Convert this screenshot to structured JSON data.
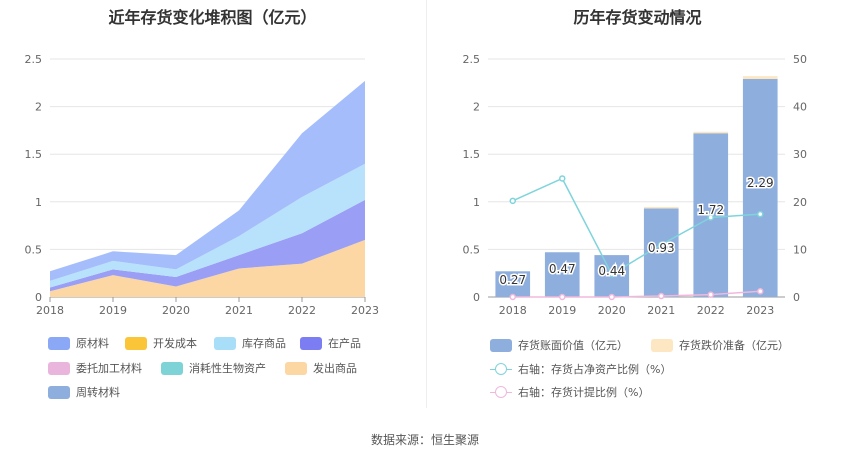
{
  "left_chart": {
    "title": "近年存货变化堆积图（亿元）",
    "legend": [
      {
        "label": "原材料",
        "color": "#8aa8f5"
      },
      {
        "label": "开发成本",
        "color": "#fbc53a"
      },
      {
        "label": "库存商品",
        "color": "#a9def9"
      },
      {
        "label": "在产品",
        "color": "#7c7df2"
      },
      {
        "label": "委托加工材料",
        "color": "#e9b5dd"
      },
      {
        "label": "消耗性生物资产",
        "color": "#7ed3d6"
      },
      {
        "label": "发出商品",
        "color": "#fcd7a3"
      },
      {
        "label": "周转材料",
        "color": "#8eaede"
      }
    ]
  },
  "right_chart": {
    "title": "历年存货变动情况",
    "legend": [
      {
        "label": "存货账面价值（亿元）",
        "color": "#8eaedd",
        "kind": "bar"
      },
      {
        "label": "存货跌价准备（亿元）",
        "color": "#fde6c2",
        "kind": "bar"
      },
      {
        "label": "右轴：存货占净资产比例（%）",
        "color": "#7fd4dc",
        "kind": "line"
      },
      {
        "label": "右轴：存货计提比例（%）",
        "color": "#f0b8dc",
        "kind": "line"
      }
    ]
  },
  "chart_data": [
    {
      "type": "area",
      "stacked": true,
      "title": "近年存货变化堆积图（亿元）",
      "x": [
        "2018",
        "2019",
        "2020",
        "2021",
        "2022",
        "2023"
      ],
      "ylim": [
        0,
        2.5
      ],
      "yticks": [
        "0",
        "0.5",
        "1",
        "1.5",
        "2",
        "2.5"
      ],
      "grid": true,
      "series": [
        {
          "name": "发出商品",
          "color": "#fcd7a3",
          "values": [
            0.06,
            0.23,
            0.11,
            0.3,
            0.35,
            0.6
          ]
        },
        {
          "name": "在产品",
          "color": "#9a9ef5",
          "values": [
            0.04,
            0.06,
            0.1,
            0.14,
            0.32,
            0.42
          ]
        },
        {
          "name": "库存商品",
          "color": "#b8e2fb",
          "values": [
            0.07,
            0.09,
            0.08,
            0.2,
            0.38,
            0.38
          ]
        },
        {
          "name": "原材料",
          "color": "#a5bdfb",
          "values": [
            0.1,
            0.1,
            0.15,
            0.27,
            0.67,
            0.87
          ]
        }
      ]
    },
    {
      "type": "bar",
      "title": "历年存货变动情况",
      "categories": [
        "2018",
        "2019",
        "2020",
        "2021",
        "2022",
        "2023"
      ],
      "ylim": [
        0,
        2.5
      ],
      "yticks": [
        "0",
        "0.5",
        "1",
        "1.5",
        "2",
        "2.5"
      ],
      "y2lim": [
        0,
        50
      ],
      "y2ticks": [
        "0",
        "10",
        "20",
        "30",
        "40",
        "50"
      ],
      "grid": true,
      "series": [
        {
          "name": "存货账面价值（亿元）",
          "type": "bar",
          "color": "#8eaedd",
          "values": [
            0.27,
            0.47,
            0.44,
            0.93,
            1.72,
            2.29
          ],
          "labels": [
            "0.27",
            "0.47",
            "0.44",
            "0.93",
            "1.72",
            "2.29"
          ]
        },
        {
          "name": "存货跌价准备（亿元）",
          "type": "bar",
          "color": "#fde6c2",
          "values": [
            0,
            0,
            0,
            0.003,
            0.01,
            0.03
          ]
        },
        {
          "name": "右轴：存货占净资产比例（%）",
          "type": "line",
          "axis": "right",
          "color": "#7fd4dc",
          "values": [
            20.2,
            24.9,
            4.8,
            11.0,
            16.7,
            17.4
          ]
        },
        {
          "name": "右轴：存货计提比例（%）",
          "type": "line",
          "axis": "right",
          "color": "#f0b8dc",
          "values": [
            0,
            0,
            0,
            0.2,
            0.5,
            1.2
          ]
        }
      ]
    }
  ],
  "footer": {
    "source": "数据来源：恒生聚源"
  }
}
